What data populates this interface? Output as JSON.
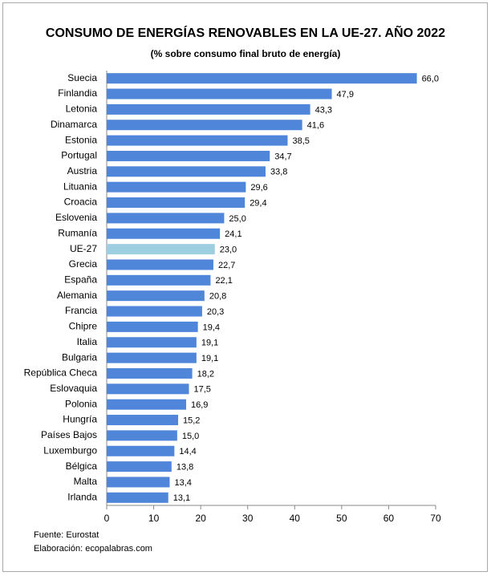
{
  "chart_data": {
    "type": "bar",
    "orientation": "horizontal",
    "title": "CONSUMO DE ENERGÍAS RENOVABLES EN LA UE-27. AÑO 2022",
    "subtitle": "(% sobre consumo final bruto de energía)",
    "categories": [
      "Suecia",
      "Finlandia",
      "Letonia",
      "Dinamarca",
      "Estonia",
      "Portugal",
      "Austria",
      "Lituania",
      "Croacia",
      "Eslovenia",
      "Rumanía",
      "UE-27",
      "Grecia",
      "España",
      "Alemania",
      "Francia",
      "Chipre",
      "Italia",
      "Bulgaria",
      "República Checa",
      "Eslovaquia",
      "Polonia",
      "Hungría",
      "Países Bajos",
      "Luxemburgo",
      "Bélgica",
      "Malta",
      "Irlanda"
    ],
    "values": [
      66.0,
      47.9,
      43.3,
      41.6,
      38.5,
      34.7,
      33.8,
      29.6,
      29.4,
      25.0,
      24.1,
      23.0,
      22.7,
      22.1,
      20.8,
      20.3,
      19.4,
      19.1,
      19.1,
      18.2,
      17.5,
      16.9,
      15.2,
      15.0,
      14.4,
      13.8,
      13.4,
      13.1
    ],
    "value_labels": [
      "66,0",
      "47,9",
      "43,3",
      "41,6",
      "38,5",
      "34,7",
      "33,8",
      "29,6",
      "29,4",
      "25,0",
      "24,1",
      "23,0",
      "22,7",
      "22,1",
      "20,8",
      "20,3",
      "19,4",
      "19,1",
      "19,1",
      "18,2",
      "17,5",
      "16,9",
      "15,2",
      "15,0",
      "14,4",
      "13,8",
      "13,4",
      "13,1"
    ],
    "colors": [
      "#4f86d9",
      "#4f86d9",
      "#4f86d9",
      "#4f86d9",
      "#4f86d9",
      "#4f86d9",
      "#4f86d9",
      "#4f86d9",
      "#4f86d9",
      "#4f86d9",
      "#4f86d9",
      "#9ecfe0",
      "#4f86d9",
      "#4f86d9",
      "#4f86d9",
      "#4f86d9",
      "#4f86d9",
      "#4f86d9",
      "#4f86d9",
      "#4f86d9",
      "#4f86d9",
      "#4f86d9",
      "#4f86d9",
      "#4f86d9",
      "#4f86d9",
      "#4f86d9",
      "#4f86d9",
      "#4f86d9"
    ],
    "xlim": [
      0,
      70
    ],
    "xticks": [
      0,
      10,
      20,
      30,
      40,
      50,
      60,
      70
    ],
    "grid": false,
    "notes": [
      "Fuente: Eurostat",
      "Elaboración: ecopalabras.com"
    ]
  }
}
